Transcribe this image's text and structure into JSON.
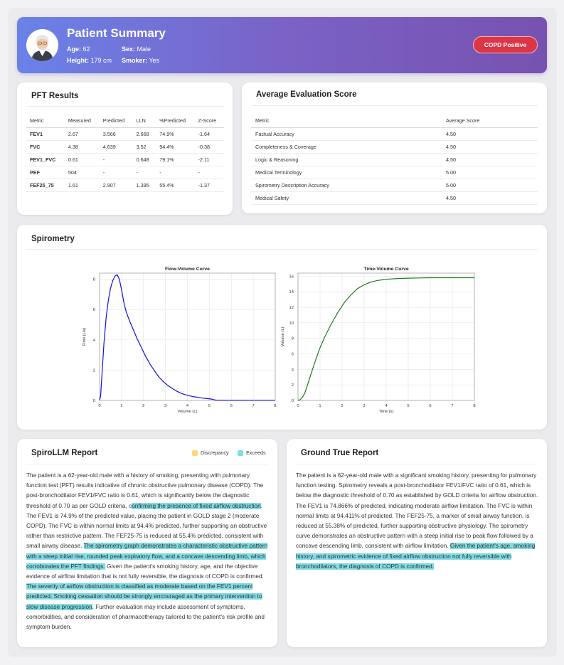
{
  "patient": {
    "title": "Patient Summary",
    "age_label": "Age:",
    "age": "62",
    "sex_label": "Sex:",
    "sex": "Male",
    "height_label": "Height:",
    "height": "179 cm",
    "smoker_label": "Smoker:",
    "smoker": "Yes",
    "badge": "COPD Positive"
  },
  "pft": {
    "title": "PFT Results",
    "headers": [
      "Metric",
      "Measured",
      "Predicted",
      "LLN",
      "%Predicted",
      "Z-Score"
    ],
    "rows": [
      [
        "FEV1",
        "2.67",
        "3.566",
        "2.668",
        "74.9%",
        "-1.64"
      ],
      [
        "FVC",
        "4.38",
        "4.639",
        "3.52",
        "94.4%",
        "-0.38"
      ],
      [
        "FEV1_FVC",
        "0.61",
        "-",
        "0.648",
        "79.1%",
        "-2.11"
      ],
      [
        "PEF",
        "504",
        "-",
        "-",
        "-",
        "-"
      ],
      [
        "FEF25_75",
        "1.61",
        "2.907",
        "1.395",
        "55.4%",
        "-1.37"
      ]
    ]
  },
  "evaluation": {
    "title": "Average Evaluation Score",
    "headers": [
      "Metric",
      "Average Score"
    ],
    "rows": [
      [
        "Factual Accuracy",
        "4.50"
      ],
      [
        "Completeness & Coverage",
        "4.50"
      ],
      [
        "Logic & Reasoning",
        "4.50"
      ],
      [
        "Medical Terminology",
        "5.00"
      ],
      [
        "Spirometry Description Accuracy",
        "5.00"
      ],
      [
        "Medical Safety",
        "4.50"
      ]
    ]
  },
  "spirometry": {
    "title": "Spirometry"
  },
  "chart_data": [
    {
      "type": "line",
      "title": "Flow-Volume Curve",
      "xlabel": "Volume (L)",
      "ylabel": "Flow (L/s)",
      "xlim": [
        0,
        8
      ],
      "ylim": [
        0,
        8.4
      ],
      "xticks": [
        0,
        1,
        2,
        3,
        4,
        5,
        6,
        7,
        8
      ],
      "yticks": [
        0,
        2,
        4,
        6,
        8
      ],
      "grid": true,
      "color": "#1010e0",
      "series": [
        {
          "name": "Flow",
          "x": [
            0,
            0.05,
            0.1,
            0.2,
            0.3,
            0.4,
            0.5,
            0.6,
            0.7,
            0.8,
            0.9,
            1.0,
            1.1,
            1.2,
            1.35,
            1.5,
            1.7,
            1.9,
            2.1,
            2.3,
            2.5,
            2.7,
            2.9,
            3.1,
            3.3,
            3.5,
            3.7,
            3.9,
            4.1,
            4.3,
            4.5,
            4.7,
            4.9,
            5.1,
            5.2,
            5.3,
            5.5,
            6,
            7,
            8
          ],
          "y": [
            0,
            0.3,
            1.5,
            3.8,
            5.5,
            6.6,
            7.4,
            7.9,
            8.2,
            8.3,
            8.0,
            7.3,
            6.5,
            5.9,
            5.3,
            4.8,
            4.1,
            3.5,
            2.9,
            2.4,
            1.95,
            1.55,
            1.25,
            1.0,
            0.8,
            0.62,
            0.48,
            0.38,
            0.3,
            0.24,
            0.2,
            0.15,
            0.12,
            0.09,
            0.05,
            0.02,
            0.01,
            0.01,
            0.01,
            0.01
          ]
        }
      ]
    },
    {
      "type": "line",
      "title": "Time-Volume Curve",
      "xlabel": "Time (s)",
      "ylabel": "Volume (L)",
      "xlim": [
        0,
        8
      ],
      "ylim": [
        0,
        16.4
      ],
      "xticks": [
        0,
        1,
        2,
        3,
        4,
        5,
        6,
        7,
        8
      ],
      "yticks": [
        0,
        2,
        4,
        6,
        8,
        10,
        12,
        14,
        16
      ],
      "grid": true,
      "color": "#1f7a1f",
      "series": [
        {
          "name": "Volume",
          "x": [
            0,
            0.1,
            0.2,
            0.3,
            0.4,
            0.5,
            0.6,
            0.8,
            1.0,
            1.2,
            1.5,
            1.8,
            2.1,
            2.4,
            2.7,
            3.0,
            3.3,
            3.6,
            4.0,
            4.5,
            5.0,
            5.5,
            6.0,
            7.0,
            8.0
          ],
          "y": [
            0,
            0.1,
            0.4,
            0.9,
            1.7,
            2.6,
            3.5,
            5.2,
            6.8,
            8.1,
            9.8,
            11.3,
            12.6,
            13.6,
            14.4,
            14.9,
            15.25,
            15.45,
            15.6,
            15.7,
            15.75,
            15.78,
            15.8,
            15.8,
            15.8
          ]
        }
      ]
    }
  ],
  "spirollm": {
    "title": "SpiroLLM Report",
    "legend_discrepancy": "Discrepancy",
    "legend_exceeds": "Exceeds",
    "colors": {
      "discrepancy": "#f5da7a",
      "exceeds": "#7fdde6"
    },
    "t1": "The patient is a 62-year-old male with a history of smoking, presenting with pulmonary function test (PFT) results indicative of chronic obstructive pulmonary disease (COPD). The post-bronchodilator FEV1/FVC ratio is 0.61, which is significantly below the diagnostic threshold of 0.70 as per GOLD criteria, c",
    "h1": "onfirming the presence of fixed airflow obstruction",
    "t2": ". The FEV1 is 74.9% of the predicted value, placing the patient in GOLD stage 2 (moderate COPD). The FVC is within normal limits at 94.4% predicted, further supporting an obstructive rather than restrictive pattern. The FEF25-75 is reduced at 55.4% predicted, consistent with small airway disease. ",
    "h2": "The spirometry graph demonstrates a characteristic obstructive pattern with a steep initial rise, rounded peak expiratory flow, and a concave descending limb, which corroborates the PFT findings.",
    "t3": " Given the patient's smoking history, age, and the objective evidence of airflow limitation that is not fully reversible, the diagnosis of COPD is confirmed. ",
    "h3": "The severity of airflow obstruction is classified as moderate based on the FEV1 percent predicted. Smoking cessation should be strongly encouraged as the primary intervention to slow disease progression",
    "t4": ". Further evaluation may include assessment of symptoms, comorbidities, and consideration of pharmacotherapy tailored to the patient's risk profile and symptom burden."
  },
  "ground": {
    "title": "Ground True Report",
    "t1": "The patient is a 62-year-old male with a significant smoking history, presenting for pulmonary function testing. Spirometry reveals a post-bronchodilator FEV1/FVC ratio of 0.61, which is below the diagnostic threshold of 0.70 as established by GOLD criteria for airflow obstruction. The FEV1 is 74.866% of predicted, indicating moderate airflow limitation. The FVC is within normal limits at 94.411% of predicted. The FEF25-75, a marker of small airway function, is reduced at 55.38% of predicted, further supporting obstructive physiology. The spirometry curve demonstrates an obstructive pattern with a steep initial rise to peak flow followed by a concave descending limb, consistent with airflow limitation. ",
    "h1": "Given the patient's age, smoking history, and spirometric evidence of fixed airflow obstruction not fully reversible with bronchodilators, the diagnosis of COPD is confirmed."
  }
}
